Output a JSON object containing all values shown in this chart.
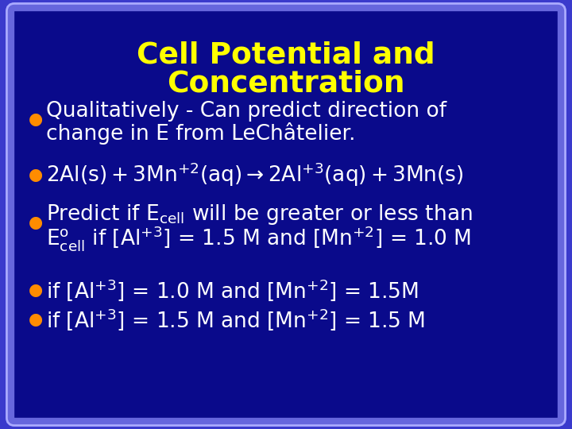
{
  "title_line1": "Cell Potential and",
  "title_line2": "Concentration",
  "title_color": "#FFFF00",
  "bullet_color": "#FF8C00",
  "text_color": "#FFFFFF",
  "bg_outer": "#3A3ACC",
  "bg_inner": "#0A0A8B",
  "border_color": "#6666DD",
  "border_color2": "#AAAAFF"
}
